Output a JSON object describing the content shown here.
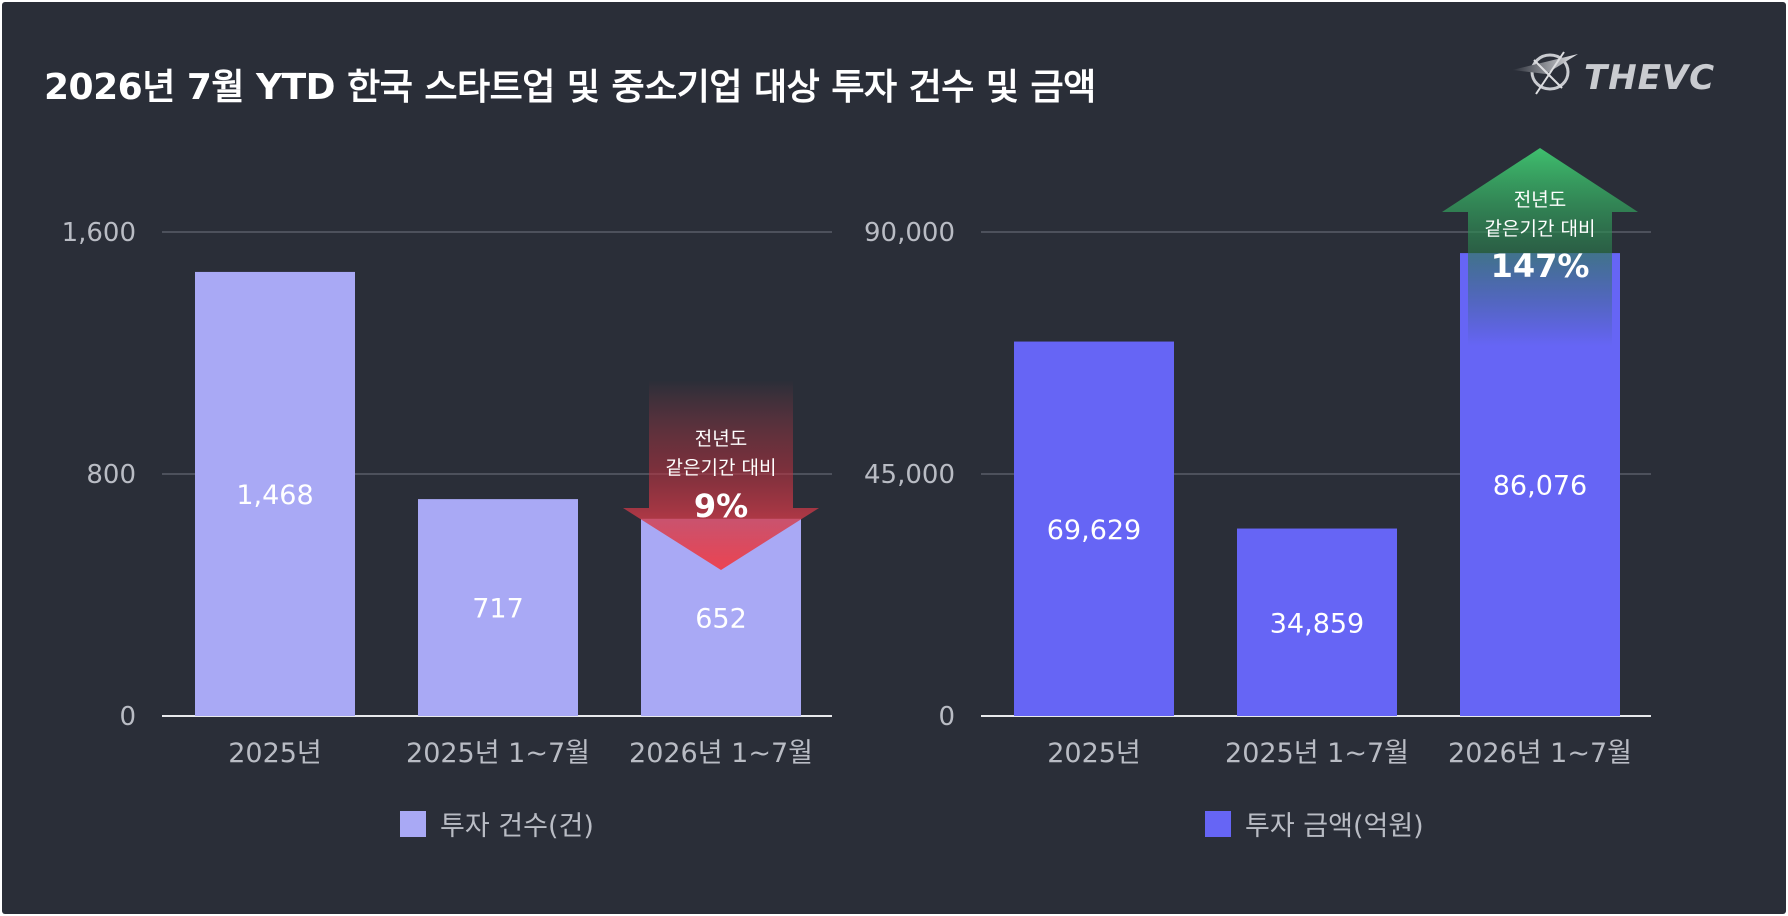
{
  "title": "2026년 7월 YTD 한국 스타트업 및 중소기업 대상 투자 건수 및 금액",
  "logo": {
    "text": "THEVC"
  },
  "colors": {
    "background": "#2a2e38",
    "count_bar": "#a9a9f5",
    "amount_bar": "#6665f5",
    "down_arrow": "#e0404e",
    "up_arrow": "#3aa865",
    "axis_text": "#b9bcc4",
    "grid": "#707480"
  },
  "chart_data": [
    {
      "type": "bar",
      "title": "",
      "categories": [
        "2025년",
        "2025년 1~7월",
        "2026년 1~7월"
      ],
      "series": [
        {
          "name": "투자 건수(건)",
          "values": [
            1468,
            717,
            652
          ]
        }
      ],
      "value_labels": [
        "1,468",
        "717",
        "652"
      ],
      "ylim": [
        0,
        1600
      ],
      "yticks": [
        0,
        800,
        1600
      ],
      "ytick_labels": [
        "0",
        "800",
        "1,600"
      ],
      "grid": true,
      "legend": "bottom",
      "annotation": {
        "direction": "down",
        "lines": [
          "전년도",
          "같은기간 대비"
        ],
        "value": "9%",
        "category_index": 2
      }
    },
    {
      "type": "bar",
      "title": "",
      "categories": [
        "2025년",
        "2025년 1~7월",
        "2026년 1~7월"
      ],
      "series": [
        {
          "name": "투자 금액(억원)",
          "values": [
            69629,
            34859,
            86076
          ]
        }
      ],
      "value_labels": [
        "69,629",
        "34,859",
        "86,076"
      ],
      "ylim": [
        0,
        90000
      ],
      "yticks": [
        0,
        45000,
        90000
      ],
      "ytick_labels": [
        "0",
        "45,000",
        "90,000"
      ],
      "grid": true,
      "legend": "bottom",
      "annotation": {
        "direction": "up",
        "lines": [
          "전년도",
          "같은기간 대비"
        ],
        "value": "147%",
        "category_index": 2
      }
    }
  ]
}
